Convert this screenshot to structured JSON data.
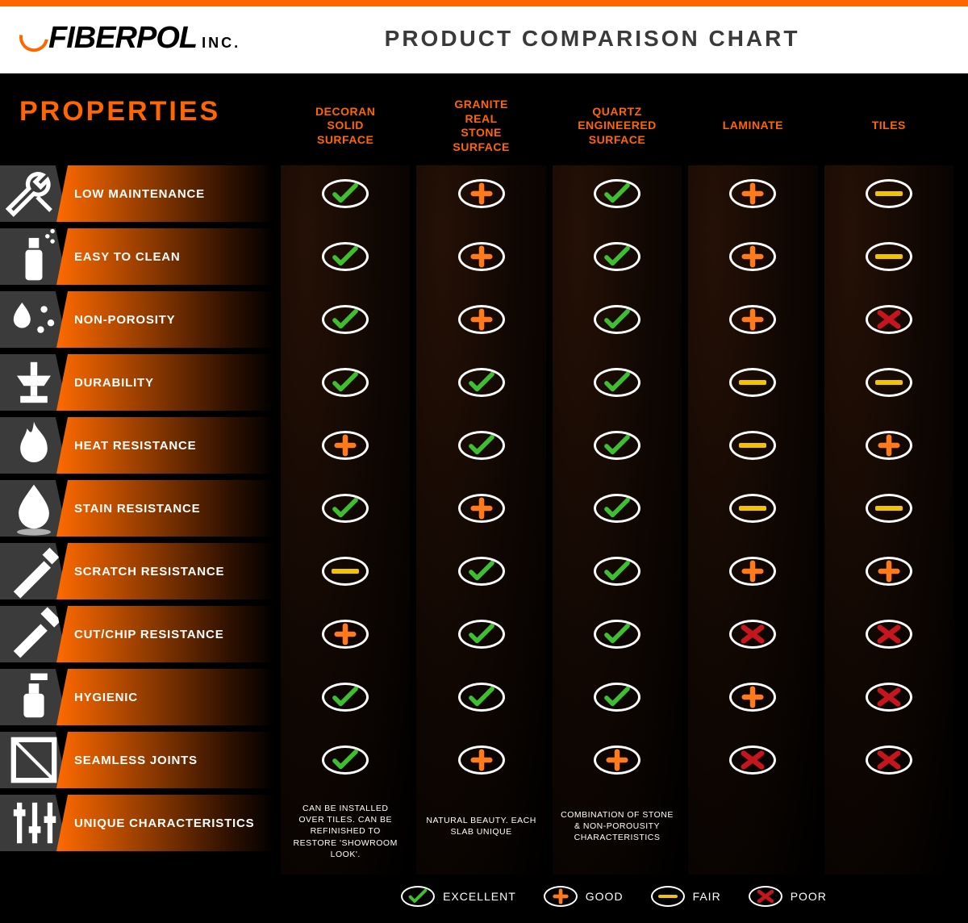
{
  "brand": {
    "name": "FIBERPOL",
    "suffix": "INC."
  },
  "title": "PRODUCT COMPARISON CHART",
  "colors": {
    "accent": "#ff6600",
    "bg_dark": "#000000",
    "panel": "#1a0d05",
    "excellent": "#3fbf2f",
    "good": "#ff7a1a",
    "fair": "#f2c400",
    "poor": "#c4161c"
  },
  "properties_header": "PROPERTIES",
  "columns": [
    {
      "id": "decoran",
      "label": "DECORAN SOLID SURFACE"
    },
    {
      "id": "granite",
      "label": "GRANITE REAL STONE SURFACE"
    },
    {
      "id": "quartz",
      "label": "QUARTZ ENGINEERED SURFACE"
    },
    {
      "id": "laminate",
      "label": "LAMINATE"
    },
    {
      "id": "tiles",
      "label": "TILES"
    }
  ],
  "properties": [
    {
      "id": "low_maintenance",
      "label": "LOW MAINTENANCE",
      "icon": "wrench"
    },
    {
      "id": "easy_to_clean",
      "label": "EASY TO CLEAN",
      "icon": "spray"
    },
    {
      "id": "non_porosity",
      "label": "NON-POROSITY",
      "icon": "droplets"
    },
    {
      "id": "durability",
      "label": "DURABILITY",
      "icon": "anvil"
    },
    {
      "id": "heat_resistance",
      "label": "HEAT RESISTANCE",
      "icon": "flame"
    },
    {
      "id": "stain_resistance",
      "label": "STAIN RESISTANCE",
      "icon": "drop"
    },
    {
      "id": "scratch_resistance",
      "label": "SCRATCH RESISTANCE",
      "icon": "blade"
    },
    {
      "id": "cut_chip",
      "label": "CUT/CHIP RESISTANCE",
      "icon": "hammer"
    },
    {
      "id": "hygienic",
      "label": "HYGIENIC",
      "icon": "soap"
    },
    {
      "id": "seamless_joints",
      "label": "SEAMLESS JOINTS",
      "icon": "panel"
    },
    {
      "id": "unique",
      "label": "UNIQUE CHARACTERISTICS",
      "icon": "sliders"
    }
  ],
  "ratings": {
    "low_maintenance": {
      "decoran": "excellent",
      "granite": "good",
      "quartz": "excellent",
      "laminate": "good",
      "tiles": "fair"
    },
    "easy_to_clean": {
      "decoran": "excellent",
      "granite": "good",
      "quartz": "excellent",
      "laminate": "good",
      "tiles": "fair"
    },
    "non_porosity": {
      "decoran": "excellent",
      "granite": "good",
      "quartz": "excellent",
      "laminate": "good",
      "tiles": "poor"
    },
    "durability": {
      "decoran": "excellent",
      "granite": "excellent",
      "quartz": "excellent",
      "laminate": "fair",
      "tiles": "fair"
    },
    "heat_resistance": {
      "decoran": "good",
      "granite": "excellent",
      "quartz": "excellent",
      "laminate": "fair",
      "tiles": "good"
    },
    "stain_resistance": {
      "decoran": "excellent",
      "granite": "good",
      "quartz": "excellent",
      "laminate": "fair",
      "tiles": "fair"
    },
    "scratch_resistance": {
      "decoran": "fair",
      "granite": "excellent",
      "quartz": "excellent",
      "laminate": "good",
      "tiles": "good"
    },
    "cut_chip": {
      "decoran": "good",
      "granite": "excellent",
      "quartz": "excellent",
      "laminate": "poor",
      "tiles": "poor"
    },
    "hygienic": {
      "decoran": "excellent",
      "granite": "excellent",
      "quartz": "excellent",
      "laminate": "good",
      "tiles": "poor"
    },
    "seamless_joints": {
      "decoran": "excellent",
      "granite": "good",
      "quartz": "good",
      "laminate": "poor",
      "tiles": "poor"
    }
  },
  "notes": {
    "decoran": "CAN BE INSTALLED OVER TILES. CAN BE REFINISHED TO RESTORE 'SHOWROOM LOOK'.",
    "granite": "NATURAL BEAUTY. EACH SLAB UNIQUE",
    "quartz": "COMBINATION OF STONE & NON-POROUSITY CHARACTERISTICS",
    "laminate": "",
    "tiles": ""
  },
  "legend": [
    {
      "key": "excellent",
      "label": "EXCELLENT"
    },
    {
      "key": "good",
      "label": "GOOD"
    },
    {
      "key": "fair",
      "label": "FAIR"
    },
    {
      "key": "poor",
      "label": "POOR"
    }
  ],
  "rating_styles": {
    "oval_border": "#ffffff",
    "excellent_color": "#3fbf2f",
    "good_color": "#ff7a1a",
    "fair_color": "#f2c400",
    "poor_color": "#c4161c"
  }
}
